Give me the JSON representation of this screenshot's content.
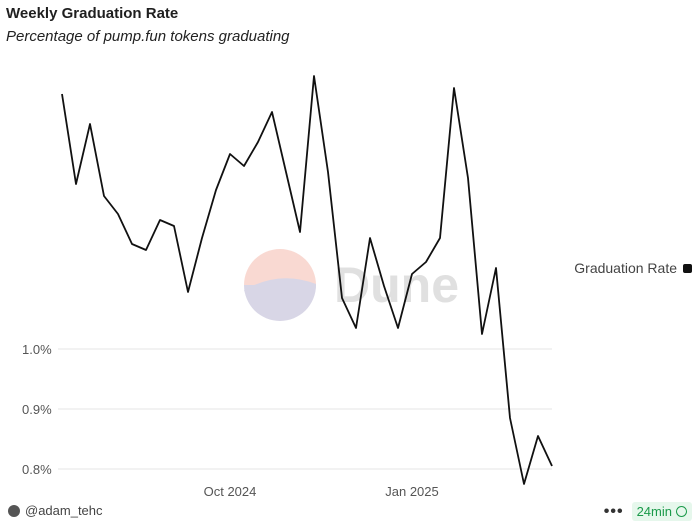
{
  "header": {
    "title": "Weekly Graduation Rate",
    "subtitle": "Percentage of pump.fun tokens graduating"
  },
  "chart_data": {
    "type": "line",
    "title": "Weekly Graduation Rate",
    "subtitle": "Percentage of pump.fun tokens graduating",
    "series": [
      {
        "name": "Graduation Rate",
        "color": "#111111",
        "values": [
          1.44,
          1.29,
          1.39,
          1.27,
          1.24,
          1.19,
          1.18,
          1.23,
          1.22,
          1.11,
          1.2,
          1.28,
          1.34,
          1.32,
          1.36,
          1.41,
          1.31,
          1.21,
          1.47,
          1.31,
          1.1,
          1.05,
          1.2,
          1.12,
          1.05,
          1.14,
          1.16,
          1.2,
          1.45,
          1.3,
          1.04,
          1.15,
          0.9,
          0.79,
          0.87,
          0.82
        ]
      }
    ],
    "ylim": [
      0.8,
      1.48
    ],
    "y_ticks": [
      {
        "value": 0.8,
        "label": "0.8%"
      },
      {
        "value": 0.9,
        "label": "0.9%"
      },
      {
        "value": 1.0,
        "label": "1.0%"
      }
    ],
    "x_ticks": [
      {
        "index": 12,
        "label": "Oct 2024"
      },
      {
        "index": 25,
        "label": "Jan 2025"
      }
    ],
    "xlabel": "",
    "ylabel": "",
    "legend_position": "right",
    "watermark": "Dune"
  },
  "legend": {
    "label": "Graduation Rate"
  },
  "footer": {
    "author": "@adam_tehc",
    "more_label": "•••",
    "refresh_age": "24min"
  }
}
